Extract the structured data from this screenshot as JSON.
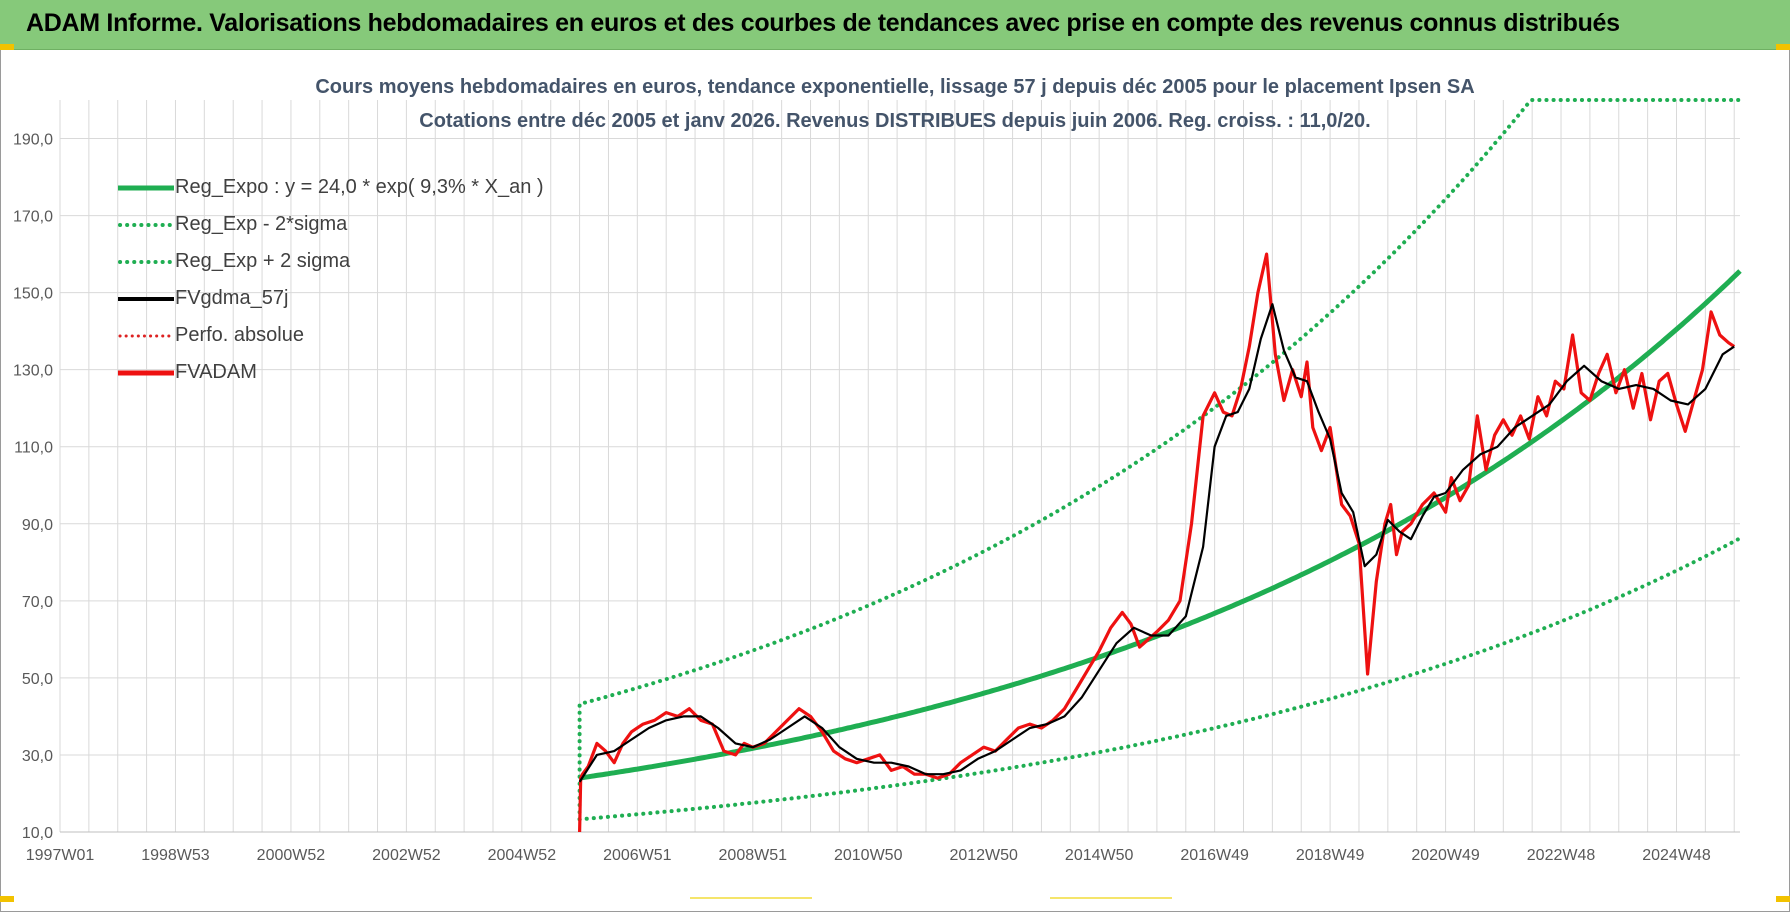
{
  "banner": {
    "title": "ADAM Informe. Valorisations hebdomadaires en euros et des courbes de tendances avec prise en compte des revenus connus distribués"
  },
  "colors": {
    "banner": "#86c97a",
    "reg_expo": "#1fae52",
    "band": "#1fae52",
    "fvgdma": "#000000",
    "fvadam": "#ee1111",
    "perfo": "#dd2222",
    "grid": "#d9d9d9",
    "axis_text": "#595959",
    "title_text": "#44546a"
  },
  "chart_data": {
    "type": "line",
    "title_line1": "Cours moyens hebdomadaires en euros, tendance exponentielle, lissage 57 j depuis déc 2005 pour le placement Ipsen SA",
    "title_line2": "Cotations entre déc 2005 et janv 2026.  Revenus DISTRIBUES depuis juin 2006. Reg. croiss. : 11,0/20.",
    "xlabel": "",
    "ylabel": "",
    "ylim": [
      10,
      200
    ],
    "y_ticks": [
      "10,0",
      "30,0",
      "50,0",
      "70,0",
      "90,0",
      "110,0",
      "130,0",
      "150,0",
      "170,0",
      "190,0"
    ],
    "y_tick_values": [
      10,
      30,
      50,
      70,
      90,
      110,
      130,
      150,
      170,
      190
    ],
    "x_range": [
      1997.0,
      2026.1
    ],
    "x_tick_labels": [
      "1997W01",
      "1998W53",
      "2000W52",
      "2002W52",
      "2004W52",
      "2006W51",
      "2008W51",
      "2010W50",
      "2012W50",
      "2014W50",
      "2016W49",
      "2018W49",
      "2020W49",
      "2022W48",
      "2024W48"
    ],
    "x_tick_positions": [
      1997.0,
      1999.0,
      2001.0,
      2003.0,
      2005.0,
      2007.0,
      2009.0,
      2011.0,
      2013.0,
      2015.0,
      2017.0,
      2019.0,
      2021.0,
      2023.0,
      2025.0
    ],
    "grid": true,
    "legend_position": "top-left",
    "legend": [
      {
        "key": "reg",
        "label": "Reg_Expo : y = 24,0 * exp( 9,3% *  X_an )"
      },
      {
        "key": "low",
        "label": "Reg_Exp - 2*sigma"
      },
      {
        "key": "high",
        "label": "Reg_Exp + 2 sigma"
      },
      {
        "key": "gdma",
        "label": "FVgdma_57j"
      },
      {
        "key": "perfo",
        "label": "Perfo. absolue"
      },
      {
        "key": "adam",
        "label": "FVADAM"
      }
    ],
    "regression": {
      "a": 24.0,
      "rate": 0.093,
      "start": 2006.0
    },
    "band_low": {
      "a": 13.3,
      "rate": 0.093,
      "start": 2006.0
    },
    "band_high": {
      "a": 43.2,
      "rate": 0.093,
      "start": 2006.0,
      "cap": 200
    },
    "fvadam": {
      "x": [
        2006.0,
        2006.02,
        2006.05,
        2006.15,
        2006.3,
        2006.45,
        2006.6,
        2006.75,
        2006.9,
        2007.1,
        2007.3,
        2007.5,
        2007.7,
        2007.9,
        2008.1,
        2008.3,
        2008.5,
        2008.7,
        2008.85,
        2009.0,
        2009.2,
        2009.4,
        2009.6,
        2009.8,
        2010.0,
        2010.2,
        2010.4,
        2010.6,
        2010.8,
        2011.0,
        2011.2,
        2011.4,
        2011.6,
        2011.8,
        2012.0,
        2012.2,
        2012.4,
        2012.6,
        2012.8,
        2013.0,
        2013.2,
        2013.4,
        2013.6,
        2013.8,
        2014.0,
        2014.2,
        2014.4,
        2014.6,
        2014.8,
        2015.0,
        2015.2,
        2015.4,
        2015.55,
        2015.7,
        2015.85,
        2016.0,
        2016.2,
        2016.4,
        2016.6,
        2016.8,
        2017.0,
        2017.15,
        2017.3,
        2017.45,
        2017.6,
        2017.75,
        2017.9,
        2018.05,
        2018.2,
        2018.35,
        2018.5,
        2018.6,
        2018.7,
        2018.85,
        2019.0,
        2019.2,
        2019.35,
        2019.5,
        2019.65,
        2019.8,
        2019.95,
        2020.05,
        2020.15,
        2020.25,
        2020.4,
        2020.6,
        2020.8,
        2021.0,
        2021.1,
        2021.25,
        2021.4,
        2021.55,
        2021.7,
        2021.85,
        2022.0,
        2022.15,
        2022.3,
        2022.45,
        2022.6,
        2022.75,
        2022.9,
        2023.05,
        2023.2,
        2023.35,
        2023.5,
        2023.65,
        2023.8,
        2023.95,
        2024.1,
        2024.25,
        2024.4,
        2024.55,
        2024.7,
        2024.85,
        2025.0,
        2025.15,
        2025.3,
        2025.45,
        2025.6,
        2025.75,
        2025.9,
        2026.0
      ],
      "y": [
        10,
        24,
        25,
        27,
        33,
        31,
        28,
        33,
        36,
        38,
        39,
        41,
        40,
        42,
        39,
        38,
        31,
        30,
        33,
        32,
        33,
        36,
        39,
        42,
        40,
        36,
        31,
        29,
        28,
        29,
        30,
        26,
        27,
        25,
        25,
        24,
        25,
        28,
        30,
        32,
        31,
        34,
        37,
        38,
        37,
        39,
        42,
        47,
        52,
        57,
        63,
        67,
        64,
        58,
        60,
        62,
        65,
        70,
        90,
        118,
        124,
        119,
        118,
        125,
        136,
        150,
        160,
        134,
        122,
        130,
        123,
        132,
        115,
        109,
        115,
        95,
        92,
        85,
        51,
        75,
        90,
        95,
        82,
        88,
        90,
        95,
        98,
        93,
        102,
        96,
        100,
        118,
        104,
        113,
        117,
        113,
        118,
        112,
        123,
        118,
        127,
        125,
        139,
        124,
        122,
        129,
        134,
        124,
        130,
        120,
        129,
        117,
        127,
        129,
        121,
        114,
        122,
        130,
        145,
        139,
        137,
        136
      ]
    },
    "fvgdma": {
      "x": [
        2006.0,
        2006.3,
        2006.6,
        2006.9,
        2007.2,
        2007.5,
        2007.8,
        2008.1,
        2008.4,
        2008.7,
        2009.0,
        2009.3,
        2009.6,
        2009.9,
        2010.2,
        2010.5,
        2010.8,
        2011.1,
        2011.4,
        2011.7,
        2012.0,
        2012.3,
        2012.6,
        2012.9,
        2013.2,
        2013.5,
        2013.8,
        2014.1,
        2014.4,
        2014.7,
        2015.0,
        2015.3,
        2015.6,
        2015.9,
        2016.2,
        2016.5,
        2016.8,
        2017.0,
        2017.2,
        2017.4,
        2017.6,
        2017.8,
        2018.0,
        2018.2,
        2018.4,
        2018.6,
        2018.8,
        2019.0,
        2019.2,
        2019.4,
        2019.6,
        2019.8,
        2020.0,
        2020.2,
        2020.4,
        2020.6,
        2020.8,
        2021.0,
        2021.3,
        2021.6,
        2021.9,
        2022.2,
        2022.5,
        2022.8,
        2023.1,
        2023.4,
        2023.7,
        2024.0,
        2024.3,
        2024.6,
        2024.9,
        2025.2,
        2025.5,
        2025.8,
        2026.0
      ],
      "y": [
        23,
        30,
        31,
        34,
        37,
        39,
        40,
        40,
        37,
        33,
        32,
        34,
        37,
        40,
        37,
        32,
        29,
        28,
        28,
        27,
        25,
        25,
        26,
        29,
        31,
        34,
        37,
        38,
        40,
        45,
        52,
        59,
        63,
        61,
        61,
        66,
        84,
        110,
        118,
        119,
        125,
        138,
        147,
        135,
        128,
        127,
        119,
        112,
        98,
        93,
        79,
        82,
        91,
        88,
        86,
        92,
        97,
        98,
        104,
        108,
        110,
        115,
        118,
        121,
        127,
        131,
        127,
        125,
        126,
        125,
        122,
        121,
        125,
        134,
        136
      ]
    }
  }
}
